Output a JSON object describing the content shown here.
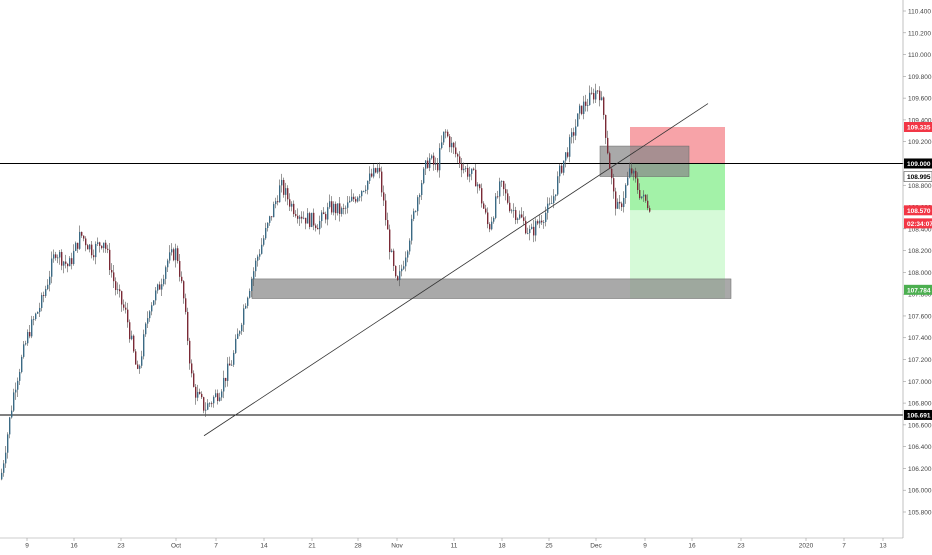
{
  "chart_data": {
    "type": "candlestick",
    "x_tick_labels": [
      "9",
      "16",
      "23",
      "Oct",
      "7",
      "14",
      "21",
      "28",
      "Nov",
      "11",
      "18",
      "25",
      "Dec",
      "9",
      "16",
      "23",
      "2020",
      "7",
      "13"
    ],
    "y_tick_labels": [
      "105.800",
      "106.000",
      "106.200",
      "106.400",
      "106.600",
      "106.800",
      "107.000",
      "107.200",
      "107.400",
      "107.600",
      "107.800",
      "108.000",
      "108.200",
      "108.400",
      "108.600",
      "108.800",
      "109.000",
      "109.200",
      "109.400",
      "109.600",
      "109.800",
      "110.000",
      "110.200",
      "110.400"
    ],
    "ylim": [
      105.77,
      110.53
    ],
    "grid": false,
    "close_path": [
      [
        0,
        106.1
      ],
      [
        14,
        106.95
      ],
      [
        28,
        107.45
      ],
      [
        42,
        107.75
      ],
      [
        55,
        108.2
      ],
      [
        68,
        108.05
      ],
      [
        80,
        108.35
      ],
      [
        92,
        108.2
      ],
      [
        103,
        108.3
      ],
      [
        115,
        107.85
      ],
      [
        126,
        107.6
      ],
      [
        137,
        107.05
      ],
      [
        149,
        107.7
      ],
      [
        158,
        107.85
      ],
      [
        166,
        108.1
      ],
      [
        176,
        108.2
      ],
      [
        183,
        107.75
      ],
      [
        192,
        106.95
      ],
      [
        204,
        106.75
      ],
      [
        218,
        106.9
      ],
      [
        232,
        107.2
      ],
      [
        245,
        107.75
      ],
      [
        257,
        108.15
      ],
      [
        268,
        108.45
      ],
      [
        280,
        108.8
      ],
      [
        292,
        108.6
      ],
      [
        305,
        108.5
      ],
      [
        318,
        108.45
      ],
      [
        330,
        108.6
      ],
      [
        342,
        108.55
      ],
      [
        355,
        108.7
      ],
      [
        368,
        108.85
      ],
      [
        378,
        108.95
      ],
      [
        388,
        108.3
      ],
      [
        396,
        107.85
      ],
      [
        408,
        108.3
      ],
      [
        418,
        108.75
      ],
      [
        428,
        109.05
      ],
      [
        436,
        108.95
      ],
      [
        444,
        109.3
      ],
      [
        454,
        109.1
      ],
      [
        464,
        108.95
      ],
      [
        476,
        108.85
      ],
      [
        488,
        108.4
      ],
      [
        500,
        108.8
      ],
      [
        510,
        108.6
      ],
      [
        520,
        108.5
      ],
      [
        530,
        108.35
      ],
      [
        540,
        108.5
      ],
      [
        550,
        108.6
      ],
      [
        560,
        108.95
      ],
      [
        570,
        109.2
      ],
      [
        580,
        109.5
      ],
      [
        590,
        109.6
      ],
      [
        598,
        109.7
      ],
      [
        603,
        109.45
      ],
      [
        608,
        109.05
      ],
      [
        613,
        108.7
      ],
      [
        618,
        108.55
      ],
      [
        624,
        108.75
      ],
      [
        630,
        108.95
      ],
      [
        638,
        108.75
      ],
      [
        644,
        108.65
      ],
      [
        650,
        108.62
      ]
    ],
    "horizontal_lines": [
      {
        "price": 109.0,
        "label": "109.000"
      },
      {
        "price": 106.691,
        "label": "106.691"
      }
    ],
    "trendline": {
      "from": [
        204,
        106.5
      ],
      "to": [
        708,
        109.55
      ]
    },
    "zones": [
      {
        "name": "resistance-zone",
        "x": [
          600,
          689
        ],
        "y": [
          108.88,
          109.16
        ],
        "color": "#888888"
      },
      {
        "name": "support-zone",
        "x": [
          252,
          731
        ],
        "y": [
          107.76,
          107.94
        ],
        "color": "#888888"
      }
    ],
    "short_position": {
      "x": [
        630,
        725
      ],
      "entry": 109.0,
      "stop": 109.335,
      "current": 108.57,
      "target": 107.76
    },
    "price_tags": [
      {
        "price": 109.335,
        "label": "109.335",
        "bg": "#f23645",
        "fg": "#ffffff"
      },
      {
        "price": 109.0,
        "label": "109.000",
        "bg": "#000000",
        "fg": "#ffffff"
      },
      {
        "price": 108.88,
        "label": "108.995",
        "bg": "#ffffff",
        "fg": "#000000",
        "border": true
      },
      {
        "price": 108.57,
        "label": "108.570",
        "bg": "#f23645",
        "fg": "#ffffff"
      },
      {
        "price": 108.45,
        "label": "02:34:07",
        "bg": "#f23645",
        "fg": "#ffffff"
      },
      {
        "price": 107.84,
        "label": "107.784",
        "bg": "#4caf50",
        "fg": "#ffffff"
      },
      {
        "price": 106.691,
        "label": "106.691",
        "bg": "#000000",
        "fg": "#ffffff"
      }
    ],
    "colors": {
      "up": "#3b6a84",
      "down": "#7a2a36",
      "wick": "#555555",
      "axis_text": "#444444",
      "line": "#000000",
      "stop_zone": "#f7a3a8",
      "profit_zone": "#a3f2a8",
      "profit_zone_light": "#d6fad8"
    }
  }
}
